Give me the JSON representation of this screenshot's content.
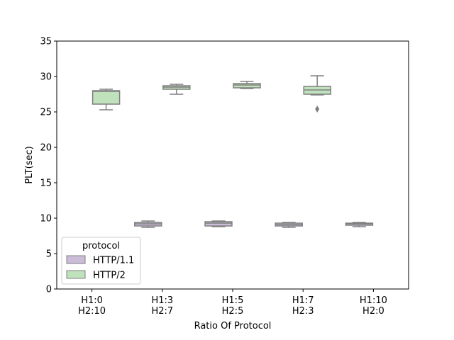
{
  "chart_data": {
    "type": "box",
    "xlabel": "Ratio Of Protocol",
    "ylabel": "PLT(sec)",
    "ylim": [
      0,
      35
    ],
    "yticks": [
      0,
      5,
      10,
      15,
      20,
      25,
      30,
      35
    ],
    "categories": [
      [
        "H1:0",
        "H2:10"
      ],
      [
        "H1:3",
        "H2:7"
      ],
      [
        "H1:5",
        "H2:5"
      ],
      [
        "H1:7",
        "H2:3"
      ],
      [
        "H1:10",
        "H2:0"
      ]
    ],
    "legend": {
      "title": "protocol",
      "position": "lower-left"
    },
    "series": [
      {
        "name": "HTTP/1.1",
        "color": "#cbbcd7",
        "boxes": [
          null,
          {
            "whislo": 8.7,
            "q1": 8.9,
            "med": 9.2,
            "q3": 9.4,
            "whishi": 9.6,
            "fliers": []
          },
          {
            "whislo": 8.8,
            "q1": 8.9,
            "med": 9.3,
            "q3": 9.5,
            "whishi": 9.6,
            "fliers": []
          },
          {
            "whislo": 8.7,
            "q1": 8.9,
            "med": 9.1,
            "q3": 9.3,
            "whishi": 9.4,
            "fliers": []
          },
          {
            "whislo": 8.8,
            "q1": 9.0,
            "med": 9.2,
            "q3": 9.3,
            "whishi": 9.4,
            "fliers": []
          }
        ]
      },
      {
        "name": "HTTP/2",
        "color": "#bfe1bb",
        "boxes": [
          {
            "whislo": 25.3,
            "q1": 26.1,
            "med": 27.9,
            "q3": 28.0,
            "whishi": 28.2,
            "fliers": []
          },
          {
            "whislo": 27.5,
            "q1": 28.2,
            "med": 28.5,
            "q3": 28.7,
            "whishi": 28.9,
            "fliers": []
          },
          {
            "whislo": 28.3,
            "q1": 28.4,
            "med": 28.8,
            "q3": 29.0,
            "whishi": 29.3,
            "fliers": []
          },
          {
            "whislo": 27.4,
            "q1": 27.5,
            "med": 28.1,
            "q3": 28.6,
            "whishi": 30.1,
            "fliers": [
              25.4
            ]
          },
          null
        ]
      }
    ],
    "line_color": "#808080"
  }
}
